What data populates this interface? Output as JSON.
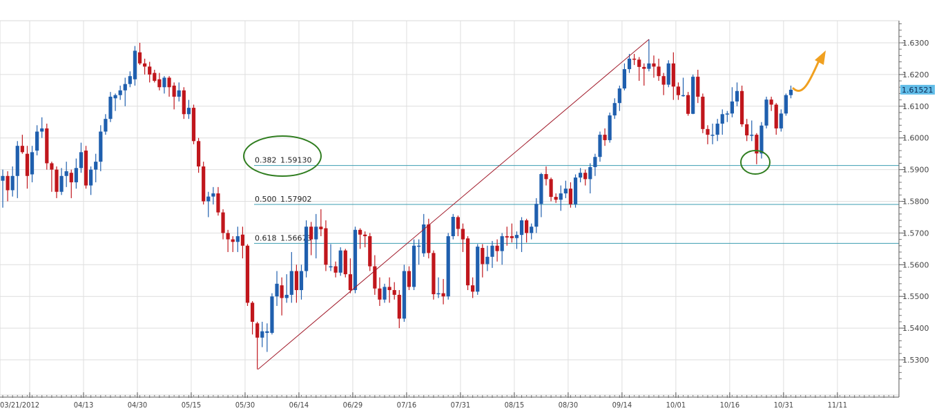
{
  "chart_data": {
    "type": "candlestick",
    "title": "",
    "xlabel": "",
    "ylabel": "",
    "ylim": [
      1.5235,
      1.637
    ],
    "y_ticks": [
      "1.6300",
      "1.6200",
      "1.6100",
      "1.6000",
      "1.5900",
      "1.5800",
      "1.5700",
      "1.5600",
      "1.5500",
      "1.5400",
      "1.5300"
    ],
    "x_ticks": [
      "03/21/2012",
      "04/13",
      "04/30",
      "05/15",
      "05/30",
      "06/14",
      "06/29",
      "07/16",
      "07/31",
      "08/15",
      "08/30",
      "09/14",
      "10/01",
      "10/16",
      "10/31",
      "11/11"
    ],
    "x_tick_candle_index": [
      5.5,
      16.5,
      27.5,
      38.5,
      49.5,
      60.5,
      71.5,
      82.5,
      93.5,
      104.5,
      115.5,
      126.5,
      137.5,
      148.5,
      159.5,
      170.5
    ],
    "grid": true,
    "last_price": "1.61521",
    "colors": {
      "up": "#1f5fae",
      "down": "#c0161c",
      "fib": "#3a9cb0",
      "trendline": "#a01828",
      "highlight": "#2f7d1f",
      "arrow": "#f0a020",
      "last_price_bg": "#62bde8"
    },
    "fibonacci": [
      {
        "ratio": "0.382",
        "price": "1.59130"
      },
      {
        "ratio": "0.500",
        "price": "1.57902"
      },
      {
        "ratio": "0.618",
        "price": "1.56673"
      }
    ],
    "trendline": {
      "from": {
        "candle": 52,
        "price": 1.527
      },
      "to": {
        "candle": 132,
        "price": 1.6311
      }
    },
    "highlights": [
      {
        "type": "ellipse",
        "target": "0.382 fib label"
      },
      {
        "type": "ellipse",
        "target": "candle low at 0.382 fib",
        "candle": 154
      }
    ],
    "annotation_arrow": "up-curved",
    "candles_ohlc": [
      [
        1.5865,
        1.59,
        1.578,
        1.588
      ],
      [
        1.588,
        1.5895,
        1.58,
        1.5835
      ],
      [
        1.5835,
        1.591,
        1.5815,
        1.588
      ],
      [
        1.588,
        1.599,
        1.581,
        1.5975
      ],
      [
        1.5975,
        1.601,
        1.595,
        1.5955
      ],
      [
        1.595,
        1.5975,
        1.584,
        1.588
      ],
      [
        1.5885,
        1.5975,
        1.586,
        1.5955
      ],
      [
        1.596,
        1.604,
        1.5945,
        1.602
      ],
      [
        1.602,
        1.6065,
        1.6,
        1.603
      ],
      [
        1.603,
        1.6045,
        1.59,
        1.592
      ],
      [
        1.592,
        1.5925,
        1.583,
        1.59
      ],
      [
        1.59,
        1.591,
        1.581,
        1.583
      ],
      [
        1.583,
        1.5905,
        1.582,
        1.588
      ],
      [
        1.588,
        1.5925,
        1.5845,
        1.5895
      ],
      [
        1.589,
        1.59,
        1.581,
        1.586
      ],
      [
        1.586,
        1.5935,
        1.584,
        1.5905
      ],
      [
        1.5905,
        1.5985,
        1.589,
        1.5955
      ],
      [
        1.596,
        1.5975,
        1.584,
        1.585
      ],
      [
        1.585,
        1.591,
        1.582,
        1.59
      ],
      [
        1.59,
        1.595,
        1.586,
        1.5925
      ],
      [
        1.5925,
        1.604,
        1.5895,
        1.602
      ],
      [
        1.602,
        1.6075,
        1.601,
        1.606
      ],
      [
        1.606,
        1.6145,
        1.605,
        1.613
      ],
      [
        1.6125,
        1.614,
        1.6085,
        1.6135
      ],
      [
        1.6135,
        1.6165,
        1.612,
        1.615
      ],
      [
        1.615,
        1.619,
        1.61,
        1.617
      ],
      [
        1.617,
        1.621,
        1.616,
        1.6195
      ],
      [
        1.6185,
        1.629,
        1.6165,
        1.6275
      ],
      [
        1.627,
        1.63,
        1.623,
        1.6235
      ],
      [
        1.6235,
        1.625,
        1.62,
        1.6225
      ],
      [
        1.6225,
        1.624,
        1.6175,
        1.62
      ],
      [
        1.6205,
        1.6215,
        1.6175,
        1.618
      ],
      [
        1.6185,
        1.6205,
        1.615,
        1.616
      ],
      [
        1.616,
        1.6195,
        1.614,
        1.619
      ],
      [
        1.619,
        1.6195,
        1.613,
        1.616
      ],
      [
        1.6165,
        1.6175,
        1.609,
        1.613
      ],
      [
        1.613,
        1.6175,
        1.6115,
        1.615
      ],
      [
        1.615,
        1.616,
        1.606,
        1.6075
      ],
      [
        1.6075,
        1.612,
        1.606,
        1.6095
      ],
      [
        1.6095,
        1.6105,
        1.598,
        1.599
      ],
      [
        1.599,
        1.6,
        1.589,
        1.591
      ],
      [
        1.591,
        1.5925,
        1.579,
        1.58
      ],
      [
        1.58,
        1.583,
        1.575,
        1.5815
      ],
      [
        1.5815,
        1.5845,
        1.579,
        1.5825
      ],
      [
        1.5825,
        1.5845,
        1.5755,
        1.5765
      ],
      [
        1.5765,
        1.5775,
        1.568,
        1.57
      ],
      [
        1.57,
        1.571,
        1.564,
        1.568
      ],
      [
        1.568,
        1.569,
        1.564,
        1.5672
      ],
      [
        1.5672,
        1.572,
        1.564,
        1.569
      ],
      [
        1.5695,
        1.572,
        1.562,
        1.566
      ],
      [
        1.566,
        1.5665,
        1.547,
        1.548
      ],
      [
        1.548,
        1.5485,
        1.538,
        1.542
      ],
      [
        1.5415,
        1.542,
        1.527,
        1.537
      ],
      [
        1.537,
        1.542,
        1.534,
        1.539
      ],
      [
        1.5385,
        1.5415,
        1.5325,
        1.539
      ],
      [
        1.5385,
        1.551,
        1.538,
        1.55
      ],
      [
        1.55,
        1.558,
        1.547,
        1.554
      ],
      [
        1.5535,
        1.556,
        1.544,
        1.5495
      ],
      [
        1.5495,
        1.557,
        1.548,
        1.5505
      ],
      [
        1.5505,
        1.564,
        1.548,
        1.558
      ],
      [
        1.558,
        1.56,
        1.548,
        1.552
      ],
      [
        1.552,
        1.56,
        1.549,
        1.558
      ],
      [
        1.558,
        1.574,
        1.556,
        1.572
      ],
      [
        1.572,
        1.5735,
        1.563,
        1.568
      ],
      [
        1.568,
        1.576,
        1.562,
        1.572
      ],
      [
        1.572,
        1.5775,
        1.569,
        1.5712
      ],
      [
        1.5715,
        1.574,
        1.558,
        1.56
      ],
      [
        1.5595,
        1.5665,
        1.558,
        1.5595
      ],
      [
        1.5595,
        1.561,
        1.556,
        1.5575
      ],
      [
        1.5575,
        1.5655,
        1.5565,
        1.5645
      ],
      [
        1.5645,
        1.565,
        1.556,
        1.557
      ],
      [
        1.557,
        1.562,
        1.551,
        1.552
      ],
      [
        1.552,
        1.572,
        1.551,
        1.571
      ],
      [
        1.571,
        1.5715,
        1.565,
        1.5695
      ],
      [
        1.5695,
        1.5705,
        1.5655,
        1.569
      ],
      [
        1.569,
        1.57,
        1.558,
        1.5595
      ],
      [
        1.5595,
        1.563,
        1.5505,
        1.5525
      ],
      [
        1.5525,
        1.556,
        1.547,
        1.549
      ],
      [
        1.549,
        1.554,
        1.548,
        1.553
      ],
      [
        1.553,
        1.556,
        1.548,
        1.552
      ],
      [
        1.552,
        1.5545,
        1.549,
        1.5505
      ],
      [
        1.5505,
        1.552,
        1.54,
        1.543
      ],
      [
        1.543,
        1.56,
        1.542,
        1.558
      ],
      [
        1.558,
        1.5595,
        1.552,
        1.553
      ],
      [
        1.553,
        1.568,
        1.552,
        1.566
      ],
      [
        1.566,
        1.568,
        1.56,
        1.566
      ],
      [
        1.5636,
        1.576,
        1.5625,
        1.5727
      ],
      [
        1.5727,
        1.5745,
        1.562,
        1.5637
      ],
      [
        1.5637,
        1.5645,
        1.549,
        1.5507
      ],
      [
        1.551,
        1.556,
        1.5495,
        1.551
      ],
      [
        1.551,
        1.5555,
        1.5475,
        1.55
      ],
      [
        1.55,
        1.57,
        1.549,
        1.569
      ],
      [
        1.569,
        1.576,
        1.568,
        1.5751
      ],
      [
        1.575,
        1.5755,
        1.569,
        1.5713
      ],
      [
        1.5713,
        1.573,
        1.564,
        1.568
      ],
      [
        1.5683,
        1.569,
        1.552,
        1.5535
      ],
      [
        1.5535,
        1.556,
        1.5495,
        1.5515
      ],
      [
        1.5515,
        1.5665,
        1.5505,
        1.5657
      ],
      [
        1.5653,
        1.5665,
        1.556,
        1.5602
      ],
      [
        1.5602,
        1.566,
        1.558,
        1.5625
      ],
      [
        1.5625,
        1.5675,
        1.559,
        1.566
      ],
      [
        1.566,
        1.568,
        1.561,
        1.5643
      ],
      [
        1.5643,
        1.57,
        1.56,
        1.569
      ],
      [
        1.569,
        1.572,
        1.566,
        1.5686
      ],
      [
        1.569,
        1.573,
        1.567,
        1.5684
      ],
      [
        1.5684,
        1.5705,
        1.565,
        1.5694
      ],
      [
        1.5694,
        1.575,
        1.564,
        1.574
      ],
      [
        1.574,
        1.5745,
        1.567,
        1.57
      ],
      [
        1.57,
        1.573,
        1.568,
        1.572
      ],
      [
        1.572,
        1.581,
        1.57,
        1.5792
      ],
      [
        1.5792,
        1.589,
        1.575,
        1.5886
      ],
      [
        1.5886,
        1.591,
        1.585,
        1.587
      ],
      [
        1.587,
        1.5875,
        1.58,
        1.5814
      ],
      [
        1.5814,
        1.5825,
        1.5795,
        1.5805
      ],
      [
        1.5805,
        1.585,
        1.577,
        1.5825
      ],
      [
        1.5825,
        1.5865,
        1.581,
        1.584
      ],
      [
        1.584,
        1.586,
        1.578,
        1.5791
      ],
      [
        1.5791,
        1.5885,
        1.578,
        1.5875
      ],
      [
        1.5875,
        1.5905,
        1.586,
        1.589
      ],
      [
        1.589,
        1.59,
        1.585,
        1.587
      ],
      [
        1.587,
        1.592,
        1.5825,
        1.5908
      ],
      [
        1.5908,
        1.595,
        1.588,
        1.594
      ],
      [
        1.594,
        1.602,
        1.5925,
        1.601
      ],
      [
        1.601,
        1.603,
        1.5975,
        1.5993
      ],
      [
        1.5993,
        1.608,
        1.5985,
        1.6071
      ],
      [
        1.6071,
        1.6125,
        1.606,
        1.611
      ],
      [
        1.611,
        1.6165,
        1.6085,
        1.6156
      ],
      [
        1.6156,
        1.6235,
        1.615,
        1.6217
      ],
      [
        1.6217,
        1.6265,
        1.6205,
        1.625
      ],
      [
        1.625,
        1.6265,
        1.623,
        1.6247
      ],
      [
        1.6247,
        1.6255,
        1.618,
        1.6224
      ],
      [
        1.6224,
        1.6235,
        1.6165,
        1.6218
      ],
      [
        1.6218,
        1.6311,
        1.621,
        1.6235
      ],
      [
        1.6235,
        1.626,
        1.619,
        1.6225
      ],
      [
        1.6225,
        1.625,
        1.618,
        1.6195
      ],
      [
        1.6195,
        1.6205,
        1.6135,
        1.6168
      ],
      [
        1.6168,
        1.6245,
        1.616,
        1.6235
      ],
      [
        1.6235,
        1.627,
        1.612,
        1.6162
      ],
      [
        1.6162,
        1.6175,
        1.612,
        1.6135
      ],
      [
        1.6135,
        1.619,
        1.613,
        1.6135
      ],
      [
        1.6135,
        1.6145,
        1.607,
        1.6076
      ],
      [
        1.6076,
        1.62,
        1.6075,
        1.6193
      ],
      [
        1.6193,
        1.6215,
        1.611,
        1.613
      ],
      [
        1.613,
        1.614,
        1.6015,
        1.6028
      ],
      [
        1.6028,
        1.604,
        1.598,
        1.601
      ],
      [
        1.601,
        1.6045,
        1.598,
        1.601
      ],
      [
        1.601,
        1.606,
        1.599,
        1.6045
      ],
      [
        1.6045,
        1.609,
        1.601,
        1.6075
      ],
      [
        1.6075,
        1.6085,
        1.605,
        1.6077
      ],
      [
        1.6077,
        1.616,
        1.6065,
        1.6115
      ],
      [
        1.6115,
        1.6175,
        1.61,
        1.6148
      ],
      [
        1.6148,
        1.6165,
        1.6035,
        1.6043
      ],
      [
        1.6043,
        1.606,
        1.599,
        1.6008
      ],
      [
        1.601,
        1.6055,
        1.599,
        1.601
      ],
      [
        1.601,
        1.6015,
        1.5917,
        1.5951
      ],
      [
        1.5951,
        1.605,
        1.5935,
        1.6039
      ],
      [
        1.6039,
        1.613,
        1.603,
        1.6121
      ],
      [
        1.6121,
        1.613,
        1.6085,
        1.6105
      ],
      [
        1.6105,
        1.611,
        1.601,
        1.603
      ],
      [
        1.603,
        1.609,
        1.602,
        1.6077
      ],
      [
        1.6077,
        1.614,
        1.607,
        1.6135
      ],
      [
        1.6135,
        1.6165,
        1.6125,
        1.6152
      ]
    ]
  }
}
